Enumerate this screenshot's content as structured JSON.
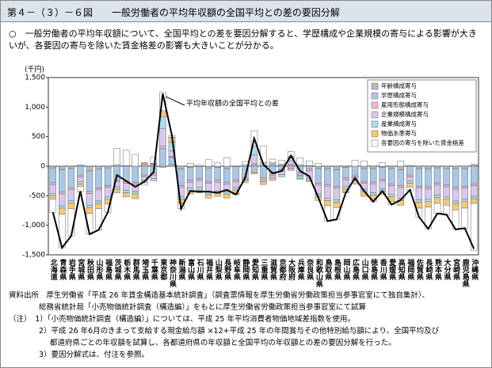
{
  "header": {
    "figure_no": "第４－（３）－６図",
    "title": "一般労働者の平均年収額の全国平均との差の要因分解"
  },
  "summary": "○　一般労働者の平均年収額について、全国平均との差を要因分解すると、学歴構成や企業規模の寄与による影響が大きいが、各要因の寄与を除いた賃金格差の影響も大きいことが分かる。",
  "chart_data": {
    "type": "stacked-bar-line",
    "y_unit": "(千円)",
    "categories": [
      "北海道",
      "青森県",
      "岩手県",
      "宮城県",
      "秋田県",
      "山形県",
      "福島県",
      "茨城県",
      "栃木県",
      "群馬県",
      "埼玉県",
      "千葉県",
      "東京都",
      "神奈川県",
      "新潟県",
      "富山県",
      "石川県",
      "福井県",
      "山梨県",
      "長野県",
      "岐阜県",
      "静岡県",
      "愛知県",
      "三重県",
      "滋賀県",
      "京都府",
      "大阪府",
      "兵庫県",
      "奈良県",
      "和歌山県",
      "鳥取県",
      "島根県",
      "岡山県",
      "広島県",
      "山口県",
      "徳島県",
      "香川県",
      "愛媛県",
      "高知県",
      "福岡県",
      "佐賀県",
      "長崎県",
      "熊本県",
      "大分県",
      "宮崎県",
      "鹿児島県",
      "沖縄県"
    ],
    "series": [
      {
        "name": "年齢構成寄与",
        "color": "#b8b8b8",
        "values": [
          -30,
          -60,
          -40,
          20,
          -80,
          -50,
          -30,
          20,
          10,
          0,
          40,
          40,
          -20,
          30,
          -50,
          -20,
          -10,
          -30,
          -20,
          -40,
          -10,
          0,
          40,
          10,
          30,
          20,
          30,
          20,
          10,
          -40,
          -50,
          -60,
          -20,
          0,
          -40,
          -40,
          -20,
          -40,
          -60,
          10,
          -40,
          -50,
          -30,
          -40,
          -40,
          -40,
          30
        ]
      },
      {
        "name": "学歴構成寄与",
        "color": "#a8c8e8",
        "values": [
          -250,
          -380,
          -330,
          -150,
          -350,
          -320,
          -300,
          -230,
          -260,
          -270,
          -150,
          -120,
          300,
          120,
          -280,
          -220,
          -200,
          -230,
          -220,
          -230,
          -220,
          -190,
          -100,
          -200,
          -130,
          -60,
          -40,
          -120,
          -50,
          -250,
          -260,
          -280,
          -180,
          -150,
          -220,
          -230,
          -200,
          -260,
          -270,
          -150,
          -300,
          -300,
          -260,
          -280,
          -320,
          -300,
          -300
        ]
      },
      {
        "name": "雇用形態構成寄与",
        "color": "#f0b8c8",
        "values": [
          -30,
          -30,
          -30,
          -30,
          -30,
          -30,
          -30,
          -30,
          -30,
          -30,
          -30,
          -30,
          40,
          10,
          -30,
          -30,
          -30,
          -30,
          -30,
          -30,
          -30,
          -30,
          0,
          -30,
          -30,
          -30,
          -30,
          -30,
          -30,
          -30,
          -30,
          -30,
          -30,
          -30,
          -30,
          -30,
          -30,
          -30,
          -30,
          -30,
          -30,
          -30,
          -30,
          -30,
          -30,
          -30,
          -30
        ]
      },
      {
        "name": "企業規模構成寄与",
        "color": "#d8c8f0",
        "values": [
          -150,
          -200,
          -180,
          -80,
          -200,
          -190,
          -160,
          -90,
          -120,
          -130,
          -60,
          -60,
          300,
          100,
          -160,
          -100,
          -120,
          -150,
          -150,
          -130,
          -100,
          -20,
          150,
          -30,
          -40,
          -50,
          60,
          -20,
          -120,
          -150,
          -200,
          -200,
          -110,
          -30,
          -100,
          -150,
          -130,
          -150,
          -180,
          -70,
          -200,
          -180,
          -170,
          -170,
          -200,
          -190,
          -180
        ]
      },
      {
        "name": "産業構成寄与",
        "color": "#a8e0e8",
        "values": [
          -40,
          -40,
          -40,
          -40,
          -40,
          -40,
          -40,
          -40,
          -40,
          -40,
          -40,
          -40,
          200,
          150,
          -40,
          -40,
          -40,
          -40,
          -40,
          -40,
          -40,
          20,
          150,
          50,
          30,
          -40,
          50,
          -40,
          -40,
          -40,
          -40,
          -40,
          -40,
          -40,
          -40,
          -40,
          -40,
          -40,
          -40,
          -40,
          -40,
          -40,
          -40,
          -40,
          -40,
          -40,
          -40
        ]
      },
      {
        "name": "物価水準寄与",
        "color": "#f8c870",
        "values": [
          -60,
          -100,
          -100,
          -40,
          -100,
          -90,
          -80,
          -60,
          -70,
          -80,
          20,
          10,
          100,
          80,
          -70,
          -60,
          -50,
          -60,
          -50,
          -70,
          -70,
          -40,
          -30,
          -50,
          -40,
          10,
          30,
          -10,
          -20,
          -70,
          -90,
          -90,
          -60,
          -50,
          -80,
          -70,
          -60,
          -80,
          -80,
          -60,
          -100,
          -90,
          -100,
          -100,
          -110,
          -110,
          -80
        ]
      },
      {
        "name": "各要因の寄与を除いた賃金格差",
        "color": "#ffffff",
        "values": [
          -220,
          -570,
          -460,
          -100,
          -350,
          -360,
          -140,
          280,
          260,
          200,
          -40,
          100,
          310,
          30,
          -90,
          50,
          20,
          110,
          60,
          140,
          -10,
          60,
          260,
          280,
          60,
          70,
          80,
          120,
          80,
          50,
          -260,
          -200,
          -10,
          100,
          90,
          -40,
          60,
          -50,
          90,
          -60,
          -150,
          -370,
          -170,
          -160,
          -330,
          -340,
          -800
        ]
      }
    ],
    "line": {
      "name": "平均年収額の全国平均との差",
      "color": "#000000",
      "values": [
        -780,
        -1380,
        -1180,
        -420,
        -1150,
        -1080,
        -780,
        -150,
        -250,
        -350,
        -260,
        -100,
        1230,
        520,
        -720,
        -420,
        -430,
        -430,
        -450,
        -400,
        -480,
        -200,
        470,
        30,
        -120,
        -80,
        180,
        -80,
        -170,
        -530,
        -930,
        -900,
        -450,
        -200,
        -420,
        -600,
        -420,
        -650,
        -570,
        -400,
        -860,
        -1060,
        -800,
        -820,
        -1070,
        -1050,
        -1400
      ]
    },
    "ylim": [
      -1500,
      1500
    ],
    "yticks": [
      {
        "value": -1500,
        "label": "-1,500"
      },
      {
        "value": -1000,
        "label": "-1,000"
      },
      -500,
      0,
      500,
      {
        "value": 1000,
        "label": "1,000"
      },
      {
        "value": 1500,
        "label": "1,500"
      }
    ],
    "legend": "upper right"
  },
  "source": {
    "line1": "資料出所　厚生労働省「平成 26 年賃金構造基本統計調査」（調査票情報を厚生労働省労働政策担当参事官室にて独自集計）、",
    "line2": "総務省統計局「小売物価統計調査（構造編）」をもとに厚生労働省労働政策担当参事官室にて試算",
    "notes": [
      "（注）　1）「小売物価統計調査（構造編）」については、平成 25 年平均消費者物価地域差指数を使用。",
      "2）平成 26 年6月のきまって支給する現金給与額 ×12+平成 25 年の年間賞与その他特別給与額により、全国平均及び",
      "都道府県ごとの年収額を試算し、各都道府県の年収額と全国平均の年収額との差の要因分解を行った。",
      "3）要因分解式は、付注を参照。"
    ]
  }
}
